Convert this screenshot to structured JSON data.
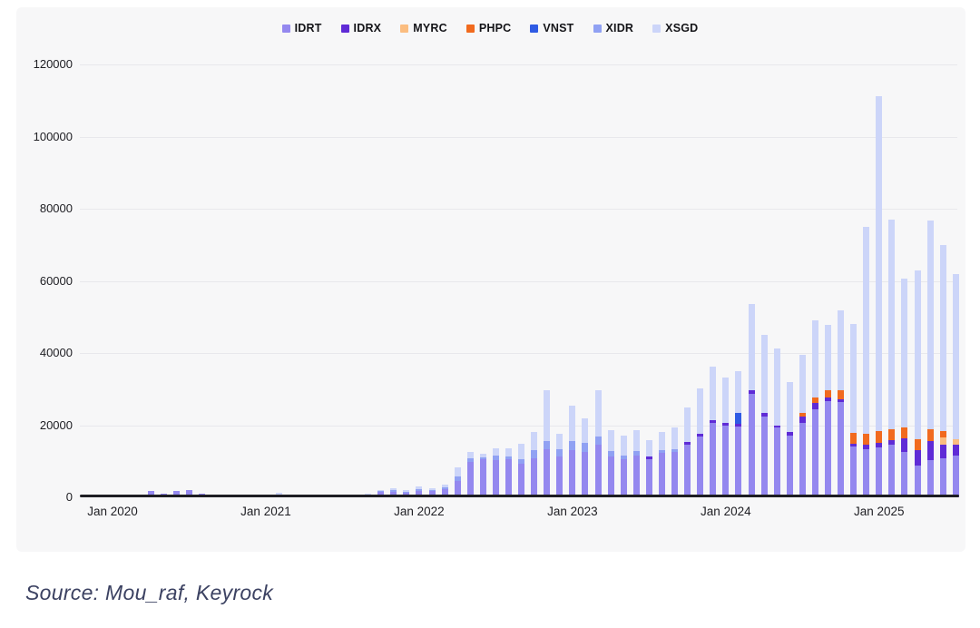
{
  "source_text": "Source: Mou_raf, Keyrock",
  "chart_data": {
    "type": "bar",
    "stacked": true,
    "title": "",
    "xlabel": "",
    "ylabel": "",
    "grid": true,
    "legend_position": "top-center",
    "ylim": [
      0,
      120000
    ],
    "y_ticks": [
      0,
      20000,
      40000,
      60000,
      80000,
      100000,
      120000
    ],
    "x": [
      "2020-01",
      "2020-02",
      "2020-03",
      "2020-04",
      "2020-05",
      "2020-06",
      "2020-07",
      "2020-08",
      "2020-09",
      "2020-10",
      "2020-11",
      "2020-12",
      "2021-01",
      "2021-02",
      "2021-03",
      "2021-04",
      "2021-05",
      "2021-06",
      "2021-07",
      "2021-08",
      "2021-09",
      "2021-10",
      "2021-11",
      "2021-12",
      "2022-01",
      "2022-02",
      "2022-03",
      "2022-04",
      "2022-05",
      "2022-06",
      "2022-07",
      "2022-08",
      "2022-09",
      "2022-10",
      "2022-11",
      "2022-12",
      "2023-01",
      "2023-02",
      "2023-03",
      "2023-04",
      "2023-05",
      "2023-06",
      "2023-07",
      "2023-08",
      "2023-09",
      "2023-10",
      "2023-11",
      "2023-12",
      "2024-01",
      "2024-02",
      "2024-03",
      "2024-04",
      "2024-05",
      "2024-06",
      "2024-07",
      "2024-08",
      "2024-09",
      "2024-10",
      "2024-11",
      "2024-12",
      "2025-01",
      "2025-02",
      "2025-03",
      "2025-04",
      "2025-05",
      "2025-06",
      "2025-07"
    ],
    "x_tick_labels": [
      {
        "index": 0,
        "label": "Jan 2020"
      },
      {
        "index": 12,
        "label": "Jan 2021"
      },
      {
        "index": 24,
        "label": "Jan 2022"
      },
      {
        "index": 36,
        "label": "Jan 2023"
      },
      {
        "index": 48,
        "label": "Jan 2024"
      },
      {
        "index": 60,
        "label": "Jan 2025"
      }
    ],
    "series": [
      {
        "name": "IDRT",
        "color": "#9488ef",
        "values": [
          100,
          200,
          850,
          1850,
          1000,
          1850,
          1900,
          1000,
          300,
          400,
          400,
          300,
          300,
          100,
          700,
          700,
          600,
          600,
          750,
          400,
          500,
          1400,
          1600,
          1300,
          1800,
          1700,
          2300,
          4600,
          9800,
          10600,
          10300,
          10600,
          9200,
          10900,
          13400,
          11300,
          13000,
          12700,
          14700,
          11300,
          10600,
          11700,
          10600,
          12300,
          12600,
          14500,
          16800,
          20600,
          19900,
          19600,
          28600,
          22400,
          19300,
          17200,
          20700,
          24400,
          26600,
          26300,
          14200,
          13400,
          13900,
          14700,
          12600,
          8800,
          10400,
          10900,
          11700
        ]
      },
      {
        "name": "IDRX",
        "color": "#5f2bd6",
        "values": [
          0,
          0,
          0,
          0,
          0,
          0,
          0,
          0,
          0,
          0,
          0,
          0,
          0,
          0,
          0,
          0,
          0,
          0,
          0,
          0,
          0,
          0,
          0,
          0,
          0,
          0,
          0,
          0,
          0,
          0,
          0,
          0,
          0,
          0,
          0,
          0,
          0,
          0,
          0,
          0,
          0,
          0,
          800,
          0,
          0,
          850,
          900,
          800,
          700,
          700,
          1200,
          900,
          600,
          800,
          1600,
          1700,
          1100,
          800,
          700,
          1300,
          1200,
          1100,
          3800,
          4200,
          5100,
          3800,
          3000
        ]
      },
      {
        "name": "MYRC",
        "color": "#fbbd80",
        "values": [
          0,
          0,
          0,
          0,
          0,
          0,
          0,
          0,
          0,
          0,
          0,
          0,
          0,
          0,
          0,
          0,
          0,
          0,
          0,
          0,
          0,
          0,
          0,
          0,
          0,
          0,
          0,
          0,
          0,
          0,
          0,
          0,
          0,
          0,
          0,
          0,
          0,
          0,
          0,
          0,
          0,
          0,
          0,
          0,
          0,
          0,
          0,
          0,
          0,
          0,
          0,
          0,
          0,
          0,
          0,
          0,
          0,
          0,
          0,
          0,
          0,
          0,
          0,
          0,
          0,
          1800,
          1400
        ]
      },
      {
        "name": "PHPC",
        "color": "#f16a1e",
        "values": [
          0,
          0,
          0,
          0,
          0,
          0,
          0,
          0,
          0,
          0,
          0,
          0,
          0,
          0,
          0,
          0,
          0,
          0,
          0,
          0,
          0,
          0,
          0,
          0,
          0,
          0,
          0,
          0,
          0,
          0,
          0,
          0,
          0,
          0,
          0,
          0,
          0,
          0,
          0,
          0,
          0,
          0,
          0,
          0,
          0,
          0,
          0,
          0,
          0,
          0,
          0,
          0,
          0,
          0,
          1200,
          1700,
          2100,
          2700,
          2900,
          3000,
          3200,
          3100,
          3100,
          3100,
          3400,
          2000,
          0
        ]
      },
      {
        "name": "VNST",
        "color": "#2f5be4",
        "values": [
          0,
          0,
          0,
          0,
          0,
          0,
          0,
          0,
          0,
          0,
          0,
          0,
          0,
          0,
          0,
          0,
          0,
          0,
          0,
          0,
          0,
          0,
          0,
          0,
          0,
          0,
          0,
          0,
          0,
          0,
          0,
          0,
          0,
          0,
          0,
          0,
          0,
          0,
          0,
          0,
          0,
          0,
          0,
          0,
          0,
          0,
          0,
          0,
          0,
          3200,
          0,
          0,
          0,
          0,
          0,
          0,
          0,
          0,
          0,
          0,
          0,
          0,
          0,
          0,
          0,
          0,
          0
        ]
      },
      {
        "name": "XIDR",
        "color": "#90a1f3",
        "values": [
          0,
          0,
          0,
          0,
          0,
          0,
          0,
          0,
          0,
          0,
          0,
          0,
          0,
          0,
          0,
          0,
          0,
          0,
          0,
          0,
          300,
          300,
          400,
          300,
          500,
          100,
          400,
          1200,
          1000,
          400,
          1200,
          800,
          1400,
          2100,
          2100,
          2100,
          2500,
          2400,
          2200,
          1500,
          1000,
          1200,
          0,
          800,
          700,
          0,
          0,
          0,
          0,
          0,
          0,
          0,
          0,
          0,
          0,
          0,
          0,
          0,
          0,
          0,
          0,
          0,
          0,
          0,
          0,
          0,
          0
        ]
      },
      {
        "name": "XSGD",
        "color": "#ccd5f9",
        "values": [
          0,
          0,
          0,
          0,
          0,
          0,
          0,
          0,
          0,
          0,
          0,
          0,
          0,
          1100,
          0,
          0,
          0,
          0,
          0,
          0,
          200,
          400,
          500,
          500,
          700,
          600,
          800,
          2500,
          1900,
          1100,
          2200,
          2300,
          4200,
          5000,
          14100,
          4100,
          9900,
          6900,
          12700,
          5700,
          5600,
          5800,
          4500,
          5100,
          6000,
          9450,
          12600,
          14800,
          12500,
          11400,
          23800,
          21700,
          21300,
          14000,
          16000,
          21300,
          17900,
          22100,
          30200,
          57200,
          92900,
          58100,
          41100,
          46900,
          57900,
          51400,
          45800
        ]
      }
    ]
  }
}
